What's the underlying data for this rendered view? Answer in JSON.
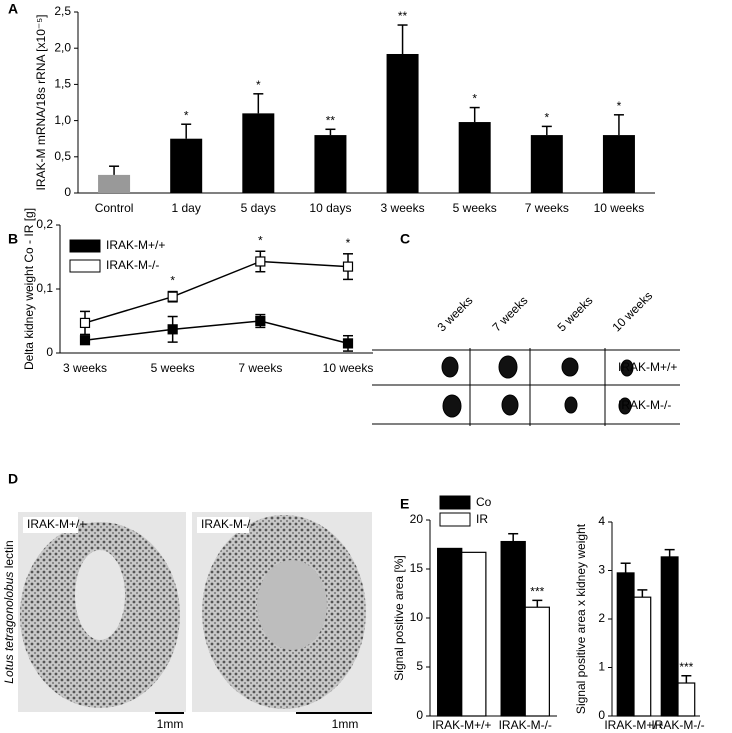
{
  "chart_data": [
    {
      "type": "bar",
      "panel": "A",
      "ylabel": "IRAK-M mRNA/18s rRNA [x10⁻⁵]",
      "categories": [
        "Control",
        "1 day",
        "5 days",
        "10 days",
        "3 weeks",
        "5 weeks",
        "7 weeks",
        "10 weeks"
      ],
      "values": [
        0.25,
        0.75,
        1.1,
        0.8,
        1.92,
        0.98,
        0.8,
        0.8
      ],
      "errors": [
        0.12,
        0.2,
        0.27,
        0.08,
        0.4,
        0.2,
        0.12,
        0.28
      ],
      "significance": [
        null,
        "*",
        "*",
        "**",
        "**",
        "*",
        "*",
        "*"
      ],
      "colors": [
        "#999999",
        "#000000",
        "#000000",
        "#000000",
        "#000000",
        "#000000",
        "#000000",
        "#000000"
      ],
      "ylim": [
        0,
        2.5
      ],
      "yticks": [
        0,
        {
          "value": 0.5,
          "label": "0,5"
        },
        {
          "value": 1,
          "label": "1,0"
        },
        {
          "value": 1.5,
          "label": "1,5"
        },
        {
          "value": 2,
          "label": "2,0"
        },
        {
          "value": 2.5,
          "label": "2,5"
        }
      ]
    },
    {
      "type": "line",
      "panel": "B",
      "ylabel": "Delta kidney weight Co - IR [g]",
      "legend": "upper left",
      "categories": [
        "3 weeks",
        "5 weeks",
        "7 weeks",
        "10 weeks"
      ],
      "series": [
        {
          "name": "IRAK-M+/+",
          "color": "#000000",
          "values": [
            0.02,
            0.037,
            0.05,
            0.015
          ],
          "errors": [
            0.005,
            0.02,
            0.01,
            0.012
          ]
        },
        {
          "name": "IRAK-M-/-",
          "color": "#ffffff",
          "values": [
            0.047,
            0.088,
            0.143,
            0.135
          ],
          "errors": [
            0.018,
            0.008,
            0.016,
            0.02
          ]
        }
      ],
      "significance": [
        null,
        "*",
        "*",
        "*"
      ],
      "ylim": [
        0,
        0.2
      ],
      "yticks": [
        0,
        {
          "value": 0.1,
          "label": "0,1"
        },
        {
          "value": 0.2,
          "label": "0,2"
        }
      ]
    },
    {
      "type": "grouped-bar",
      "panel": "E",
      "ylabel": "Signal positive area [%]",
      "legend": "upper left",
      "categories": [
        "IRAK-M+/+",
        "IRAK-M-/-"
      ],
      "series": [
        {
          "name": "Co",
          "color": "#000000",
          "values": [
            17.1,
            17.8
          ],
          "errors": [
            0,
            0.8
          ]
        },
        {
          "name": "IR",
          "color": "#ffffff",
          "values": [
            16.7,
            11.1
          ],
          "errors": [
            0,
            0.7
          ],
          "significance": [
            null,
            "***"
          ]
        }
      ],
      "ylim": [
        0,
        20
      ],
      "yticks": [
        0,
        5,
        10,
        15,
        20
      ]
    },
    {
      "type": "grouped-bar",
      "ylabel": "Signal positive area x kidney weight",
      "categories": [
        "IRAK-M+/+",
        "IRAK-M-/-"
      ],
      "series": [
        {
          "color": "#000000",
          "values": [
            2.95,
            3.28
          ],
          "errors": [
            0.2,
            0.15
          ]
        },
        {
          "color": "#ffffff",
          "values": [
            2.45,
            0.68
          ],
          "errors": [
            0.15,
            0.15
          ],
          "significance": [
            null,
            "***"
          ]
        }
      ],
      "ylim": [
        0,
        4
      ],
      "yticks": [
        0,
        1,
        2,
        3,
        4
      ]
    }
  ],
  "panel_c": {
    "panel": "C",
    "columns": [
      "3 weeks",
      "7 weeks",
      "5 weeks",
      "10 weeks"
    ],
    "rows": [
      "IRAK-M+/+",
      "IRAK-M-/-"
    ]
  },
  "panel_d": {
    "panel": "D",
    "side_label_italic": "Lotus tetragonolobus",
    "side_label": "lectin",
    "images": [
      {
        "label": "IRAK-M+/+",
        "scale": "1mm"
      },
      {
        "label": "IRAK-M-/-",
        "scale": "1mm"
      }
    ]
  }
}
